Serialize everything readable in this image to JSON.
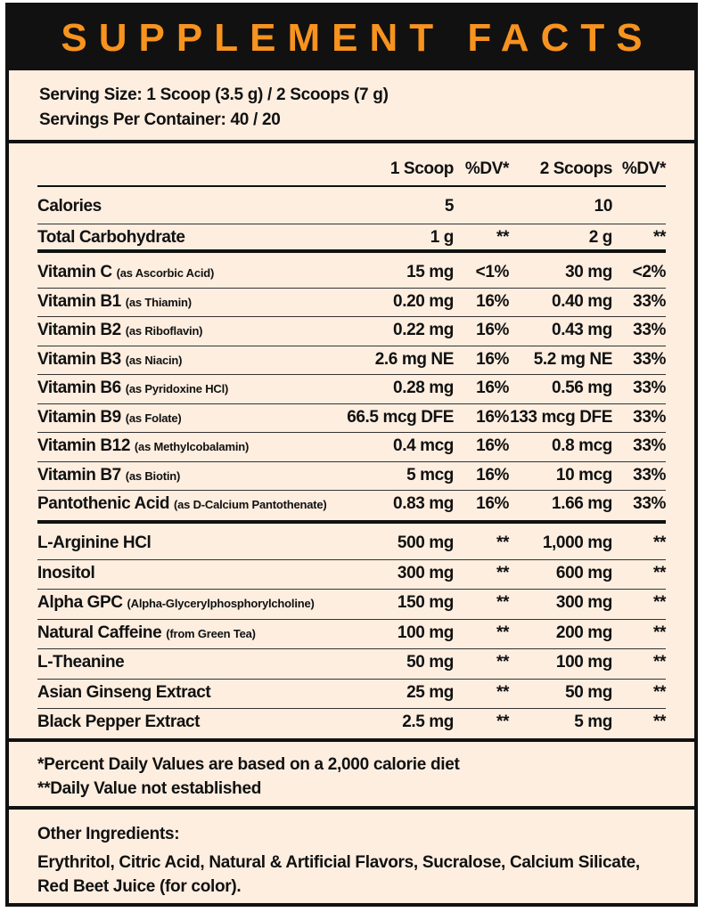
{
  "title": "SUPPLEMENT FACTS",
  "serving_size": "Serving Size: 1 Scoop (3.5 g) / 2 Scoops (7 g)",
  "servings_per_container": "Servings Per Container: 40 / 20",
  "columns": {
    "one_scoop": "1 Scoop",
    "dv1": "%DV*",
    "two_scoops": "2 Scoops",
    "dv2": "%DV*"
  },
  "basic": [
    {
      "name": "Calories",
      "sub": "",
      "a": "5",
      "b": "",
      "c": "10",
      "d": ""
    },
    {
      "name": "Total Carbohydrate",
      "sub": "",
      "a": "1 g",
      "b": "**",
      "c": "2 g",
      "d": "**"
    }
  ],
  "vitamins": [
    {
      "name": "Vitamin C",
      "sub": "(as Ascorbic Acid)",
      "a": "15 mg",
      "b": "<1%",
      "c": "30 mg",
      "d": "<2%"
    },
    {
      "name": "Vitamin B1",
      "sub": "(as Thiamin)",
      "a": "0.20 mg",
      "b": "16%",
      "c": "0.40 mg",
      "d": "33%"
    },
    {
      "name": "Vitamin B2",
      "sub": "(as Riboflavin)",
      "a": "0.22 mg",
      "b": "16%",
      "c": "0.43 mg",
      "d": "33%"
    },
    {
      "name": "Vitamin B3",
      "sub": "(as Niacin)",
      "a": "2.6 mg NE",
      "b": "16%",
      "c": "5.2 mg NE",
      "d": "33%"
    },
    {
      "name": "Vitamin B6",
      "sub": "(as Pyridoxine HCl)",
      "a": "0.28 mg",
      "b": "16%",
      "c": "0.56 mg",
      "d": "33%"
    },
    {
      "name": "Vitamin B9",
      "sub": "(as Folate)",
      "a": "66.5 mcg DFE",
      "b": "16%",
      "c": "133 mcg DFE",
      "d": "33%"
    },
    {
      "name": "Vitamin B12",
      "sub": "(as Methylcobalamin)",
      "a": "0.4 mcg",
      "b": "16%",
      "c": "0.8 mcg",
      "d": "33%"
    },
    {
      "name": "Vitamin B7",
      "sub": "(as Biotin)",
      "a": "5 mcg",
      "b": "16%",
      "c": "10 mcg",
      "d": "33%"
    },
    {
      "name": "Pantothenic Acid",
      "sub": "(as D-Calcium Pantothenate)",
      "a": "0.83 mg",
      "b": "16%",
      "c": "1.66 mg",
      "d": "33%"
    }
  ],
  "ingredients": [
    {
      "name": "L-Arginine HCl",
      "sub": "",
      "a": "500 mg",
      "b": "**",
      "c": "1,000 mg",
      "d": "**"
    },
    {
      "name": "Inositol",
      "sub": "",
      "a": "300 mg",
      "b": "**",
      "c": "600 mg",
      "d": "**"
    },
    {
      "name": "Alpha GPC",
      "sub": "(Alpha-Glycerylphosphorylcholine)",
      "a": "150 mg",
      "b": "**",
      "c": "300 mg",
      "d": "**"
    },
    {
      "name": "Natural Caffeine",
      "sub": "(from Green Tea)",
      "a": "100 mg",
      "b": "**",
      "c": "200 mg",
      "d": "**"
    },
    {
      "name": "L-Theanine",
      "sub": "",
      "a": "50 mg",
      "b": "**",
      "c": "100 mg",
      "d": "**"
    },
    {
      "name": "Asian Ginseng Extract",
      "sub": "",
      "a": "25 mg",
      "b": "**",
      "c": "50 mg",
      "d": "**"
    },
    {
      "name": "Black Pepper Extract",
      "sub": "",
      "a": "2.5 mg",
      "b": "**",
      "c": "5 mg",
      "d": "**"
    }
  ],
  "footnotes": {
    "dv_note": "*Percent Daily Values are based on a 2,000 calorie diet",
    "not_established": "**Daily Value not established"
  },
  "other_ingredients": {
    "heading": "Other Ingredients:",
    "line1": "Erythritol, Citric Acid, Natural & Artificial Flavors, Sucralose, Calcium Silicate,",
    "line2": "Red Beet Juice (for color)."
  },
  "colors": {
    "accent": "#f7931e",
    "background": "#fdeee0",
    "ink": "#111111"
  }
}
